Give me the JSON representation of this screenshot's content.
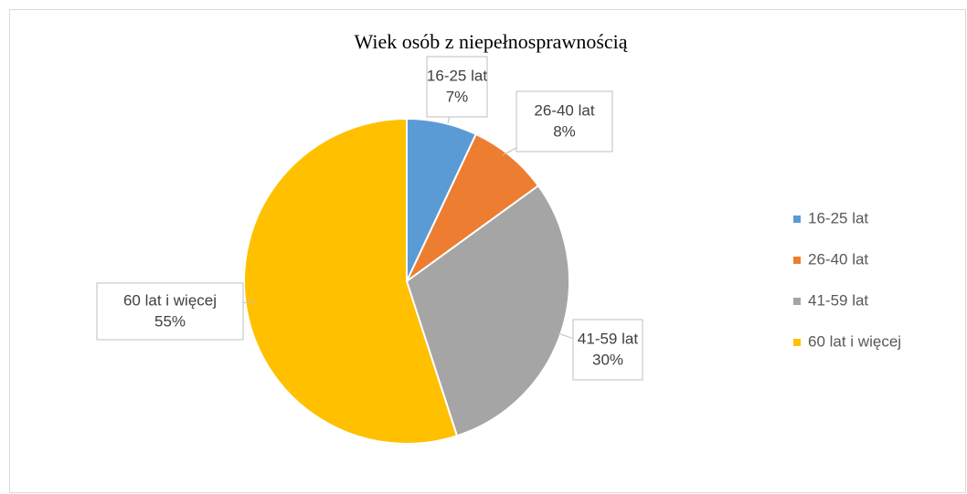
{
  "chart_data": {
    "type": "pie",
    "title": "Wiek osób z niepełnosprawnością",
    "categories": [
      "16-25 lat",
      "26-40 lat",
      "41-59 lat",
      "60 lat i więcej"
    ],
    "values": [
      7,
      8,
      30,
      55
    ],
    "value_labels": [
      "7%",
      "8%",
      "30%",
      "55%"
    ],
    "colors": [
      "#5b9bd5",
      "#ed7d31",
      "#a5a5a5",
      "#ffc000"
    ],
    "legend": "right"
  }
}
